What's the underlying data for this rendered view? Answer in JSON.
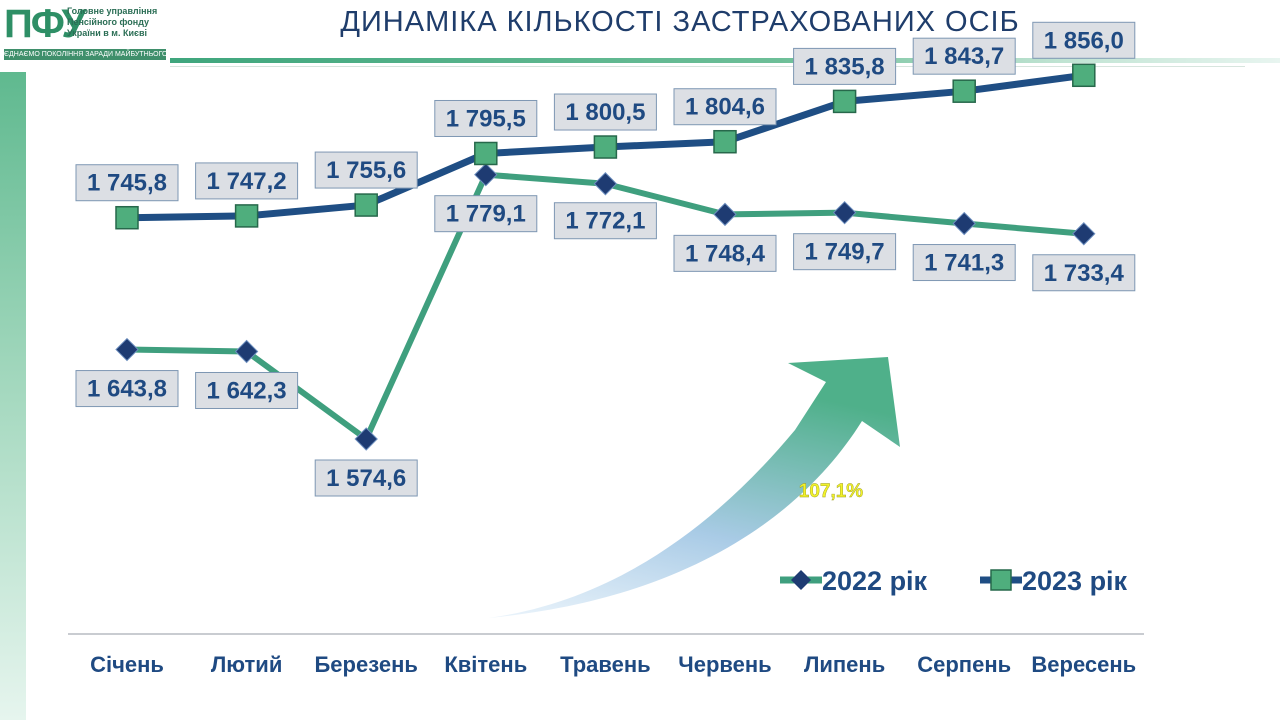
{
  "header": {
    "logo_mark": "ПФУ",
    "logo_lines": [
      "Головне управління",
      "Пенсійного фонду",
      "України в м. Києві"
    ],
    "logo_slogan": "ЄДНАЄМО ПОКОЛІННЯ ЗАРАДИ МАЙБУТНЬОГО",
    "title": "ДИНАМІКА КІЛЬКОСТІ ЗАСТРАХОВАНИХ  ОСІБ"
  },
  "colors": {
    "series_2022": "#3f9f7e",
    "series_2023": "#1f4e84",
    "marker_2022": "#1e3b72",
    "marker_2023": "#4fae7d",
    "label_text": "#1f4a82"
  },
  "chart_data": {
    "type": "line",
    "categories": [
      "Січень",
      "Лютий",
      "Березень",
      "Квітень",
      "Травень",
      "Червень",
      "Липень",
      "Серпень",
      "Вересень"
    ],
    "series": [
      {
        "name": "2022 рік",
        "marker": "diamond",
        "values": [
          1643.8,
          1642.3,
          1574.6,
          1779.1,
          1772.1,
          1748.4,
          1749.7,
          1741.3,
          1733.4
        ],
        "labels": [
          "1 643,8",
          "1 642,3",
          "1 574,6",
          "1 779,1",
          "1 772,1",
          "1 748,4",
          "1 749,7",
          "1 741,3",
          "1 733,4"
        ]
      },
      {
        "name": "2023 рік",
        "marker": "square",
        "values": [
          1745.8,
          1747.2,
          1755.6,
          1795.5,
          1800.5,
          1804.6,
          1835.8,
          1843.7,
          1856.0
        ],
        "labels": [
          "1 745,8",
          "1 747,2",
          "1 755,6",
          "1 795,5",
          "1 800,5",
          "1 804,6",
          "1 835,8",
          "1 843,7",
          "1 856,0"
        ]
      }
    ],
    "annotation": "107,1%",
    "legend_position": "bottom-right",
    "grid": false
  }
}
